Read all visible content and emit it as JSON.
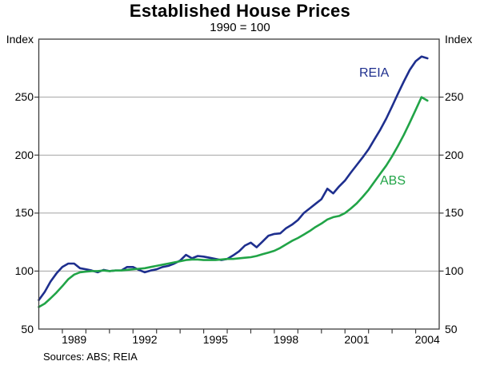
{
  "chart_data": {
    "type": "line",
    "title": "Established House Prices",
    "subtitle": "1990 = 100",
    "ylabel_left": "Index",
    "ylabel_right": "Index",
    "footnote": "Sources: ABS; REIA",
    "xlim": [
      1988,
      2005
    ],
    "ylim": [
      50,
      300
    ],
    "y_ticks": [
      250,
      200,
      150,
      100,
      50
    ],
    "y_gridlines": [
      100,
      150,
      200,
      250
    ],
    "x_minor_ticks": [
      1989,
      1990,
      1991,
      1992,
      1993,
      1994,
      1995,
      1996,
      1997,
      1998,
      1999,
      2000,
      2001,
      2002,
      2003,
      2004
    ],
    "x_tick_labels": [
      1989,
      1992,
      1995,
      1998,
      2001,
      2004
    ],
    "grid": "horizontal-on",
    "legend_position": "inline-annotations",
    "frame_color": "#3d3d3d",
    "grid_color": "#a3a3a3",
    "x": [
      1988,
      1988.25,
      1988.5,
      1988.75,
      1989,
      1989.25,
      1989.5,
      1989.75,
      1990,
      1990.25,
      1990.5,
      1990.75,
      1991,
      1991.25,
      1991.5,
      1991.75,
      1992,
      1992.25,
      1992.5,
      1992.75,
      1993,
      1993.25,
      1993.5,
      1993.75,
      1994,
      1994.25,
      1994.5,
      1994.75,
      1995,
      1995.25,
      1995.5,
      1995.75,
      1996,
      1996.25,
      1996.5,
      1996.75,
      1997,
      1997.25,
      1997.5,
      1997.75,
      1998,
      1998.25,
      1998.5,
      1998.75,
      1999,
      1999.25,
      1999.5,
      1999.75,
      2000,
      2000.25,
      2000.5,
      2000.75,
      2001,
      2001.25,
      2001.5,
      2001.75,
      2002,
      2002.25,
      2002.5,
      2002.75,
      2003,
      2003.25,
      2003.5,
      2003.75,
      2004,
      2004.25,
      2004.5
    ],
    "series": [
      {
        "name": "REIA",
        "color": "#1e2f8e",
        "values": [
          75,
          82,
          91,
          98,
          103.5,
          106.5,
          106.5,
          102.5,
          101.5,
          100.5,
          99,
          101,
          100,
          100.5,
          100.5,
          103.5,
          103.5,
          101,
          99,
          100.5,
          101.5,
          103.5,
          104.5,
          106.5,
          109,
          114,
          111,
          113,
          112.5,
          111.5,
          110.5,
          109.5,
          110.5,
          113.5,
          117,
          122,
          124.5,
          120.5,
          125.5,
          130.5,
          132,
          132.5,
          137,
          140,
          144,
          150,
          154,
          158,
          162,
          171,
          167,
          173,
          178,
          185,
          191.5,
          198,
          205,
          213.5,
          222,
          231.5,
          242,
          253,
          263.5,
          273.5,
          281,
          285,
          283.5
        ]
      },
      {
        "name": "ABS",
        "color": "#21a447",
        "values": [
          69,
          72,
          76.5,
          81.5,
          87,
          93,
          97,
          99,
          99.5,
          100,
          100,
          100.5,
          100,
          100.5,
          100.5,
          101,
          101.5,
          102,
          102.5,
          103.5,
          104.5,
          105.5,
          106.5,
          107.5,
          108.5,
          109.5,
          110,
          110,
          109.5,
          109.5,
          109.5,
          110,
          110.5,
          110.5,
          111,
          111.5,
          112,
          113,
          114.5,
          116,
          117.5,
          120,
          123,
          126,
          128.5,
          131.5,
          134.5,
          138,
          141,
          144.5,
          146.5,
          147.5,
          150,
          154,
          158.5,
          164,
          170,
          177,
          184,
          191,
          199,
          208,
          217.5,
          228,
          239,
          250,
          247
        ]
      }
    ]
  }
}
